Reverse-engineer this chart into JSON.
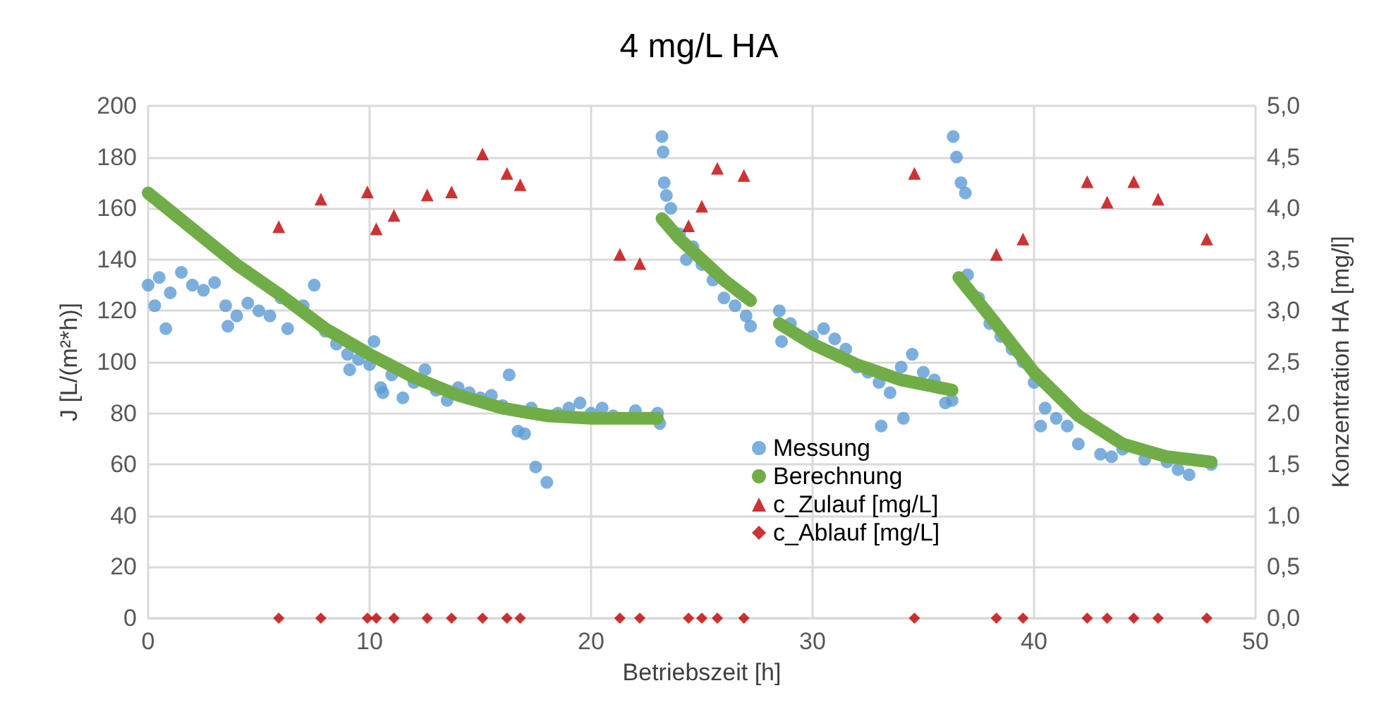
{
  "chart_data": {
    "type": "scatter",
    "title": "4 mg/L HA",
    "xlabel": "Betriebszeit [h]",
    "ylabel": "J [L/(m²*h)]",
    "y2label": "Konzentration HA [mg/l]",
    "xlim": [
      0,
      50
    ],
    "xticks": [
      0,
      10,
      20,
      30,
      40,
      50
    ],
    "ylim": [
      0,
      200
    ],
    "yticks": [
      0,
      20,
      40,
      60,
      80,
      100,
      120,
      140,
      160,
      180,
      200
    ],
    "y2lim": [
      0,
      5
    ],
    "y2ticks": [
      {
        "value": 0,
        "label": "0,0"
      },
      {
        "value": 0.5,
        "label": "0,5"
      },
      {
        "value": 1,
        "label": "1,0"
      },
      {
        "value": 1.5,
        "label": "1,5"
      },
      {
        "value": 2,
        "label": "2,0"
      },
      {
        "value": 2.5,
        "label": "2,5"
      },
      {
        "value": 3,
        "label": "3,0"
      },
      {
        "value": 3.5,
        "label": "3,5"
      },
      {
        "value": 4,
        "label": "4,0"
      },
      {
        "value": 4.5,
        "label": "4,5"
      },
      {
        "value": 5,
        "label": "5,0"
      }
    ],
    "grid": true,
    "legend": "bottom",
    "marker": "circle",
    "series": [
      {
        "name": "Messung",
        "color": "#5b9bd5",
        "x": [
          0,
          0.3,
          0.5,
          0.8,
          1,
          1.5,
          2,
          2.5,
          3,
          3.5,
          3.6,
          4,
          4.5,
          5,
          5.5,
          6,
          6.3,
          7,
          7.5,
          8,
          8.5,
          9,
          9.1,
          9.5,
          10,
          10.2,
          10.5,
          10.6,
          11,
          11.5,
          12,
          12.5,
          13,
          13.5,
          14,
          14.5,
          15,
          15.5,
          16,
          16.3,
          16.7,
          17,
          17.3,
          17.5,
          18,
          18.5,
          19,
          19.5,
          20,
          20.5,
          21,
          22,
          23,
          23.1,
          23.2,
          23.25,
          23.3,
          23.4,
          23.6,
          24,
          24.3,
          24.6,
          25,
          25.5,
          26,
          26.5,
          27,
          27.2,
          28.5,
          28.6,
          29,
          30,
          30.5,
          31,
          31.5,
          32,
          32.5,
          33,
          33.1,
          33.5,
          34,
          34.1,
          34.5,
          35,
          35.5,
          36,
          36.3,
          36.35,
          36.5,
          36.7,
          36.9,
          37,
          37.5,
          38,
          38.5,
          39,
          39.5,
          40,
          40.3,
          40.5,
          41,
          41.5,
          42,
          43,
          43.5,
          44,
          45,
          46,
          46.5,
          47,
          48
        ],
        "values": [
          130,
          122,
          133,
          113,
          127,
          135,
          130,
          128,
          131,
          122,
          114,
          118,
          123,
          120,
          118,
          125,
          113,
          122,
          130,
          112,
          107,
          103,
          97,
          101,
          99,
          108,
          90,
          88,
          95,
          86,
          92,
          97,
          89,
          85,
          90,
          88,
          86,
          87,
          83,
          95,
          73,
          72,
          82,
          59,
          53,
          80,
          82,
          84,
          80,
          82,
          79,
          81,
          80,
          76,
          188,
          182,
          170,
          165,
          160,
          150,
          140,
          145,
          138,
          132,
          125,
          122,
          118,
          114,
          120,
          108,
          115,
          110,
          113,
          109,
          105,
          98,
          96,
          92,
          75,
          88,
          98,
          78,
          103,
          96,
          93,
          84,
          85,
          188,
          180,
          170,
          166,
          134,
          125,
          115,
          110,
          105,
          100,
          92,
          75,
          82,
          78,
          75,
          68,
          64,
          63,
          66,
          62,
          61,
          58,
          56,
          60
        ]
      },
      {
        "name": "Berechnung",
        "color": "#70ad47",
        "type": "line",
        "marker": "none",
        "x": [
          0,
          2,
          4,
          6,
          8,
          10,
          12,
          14,
          16,
          18,
          20,
          22,
          23,
          23.1,
          23.2,
          24,
          25,
          26,
          27.2,
          27.9,
          28.5,
          30,
          32,
          34,
          36.3,
          36.4,
          36.6,
          38,
          40,
          42,
          44,
          46,
          48
        ],
        "values": [
          166,
          152,
          138,
          126,
          113,
          103,
          94,
          87,
          82,
          79,
          78,
          78,
          78,
          null,
          156,
          148,
          140,
          132,
          124,
          null,
          115,
          107,
          99,
          93,
          89,
          null,
          133,
          118,
          96,
          79,
          68,
          63,
          61
        ]
      },
      {
        "name": "c_Zulauf [mg/L]",
        "color": "#c00000",
        "marker": "triangle",
        "axis": "y2",
        "x": [
          5.9,
          7.8,
          9.9,
          10.3,
          11.1,
          12.6,
          13.7,
          15.1,
          16.2,
          16.8,
          21.3,
          22.2,
          24.4,
          25.0,
          25.7,
          26.9,
          34.6,
          38.3,
          39.5,
          42.4,
          43.3,
          44.5,
          45.6,
          47.8
        ],
        "values": [
          3.82,
          4.09,
          4.16,
          3.8,
          3.93,
          4.13,
          4.16,
          4.53,
          4.34,
          4.23,
          3.55,
          3.46,
          3.83,
          4.02,
          4.39,
          4.32,
          4.34,
          3.55,
          3.7,
          4.26,
          4.06,
          4.26,
          4.09,
          3.7
        ]
      },
      {
        "name": "c_Ablauf [mg/L]",
        "color": "#c00000",
        "marker": "diamond",
        "axis": "y2",
        "x": [
          5.9,
          7.8,
          9.9,
          10.3,
          11.1,
          12.6,
          13.7,
          15.1,
          16.2,
          16.8,
          21.3,
          22.2,
          24.4,
          25.0,
          25.7,
          26.9,
          34.6,
          38.3,
          39.5,
          42.4,
          43.3,
          44.5,
          45.6,
          47.8
        ],
        "values": [
          0,
          0,
          0,
          0,
          0,
          0,
          0,
          0,
          0,
          0,
          0,
          0,
          0,
          0,
          0,
          0,
          0,
          0,
          0,
          0,
          0,
          0,
          0,
          0
        ]
      }
    ]
  }
}
